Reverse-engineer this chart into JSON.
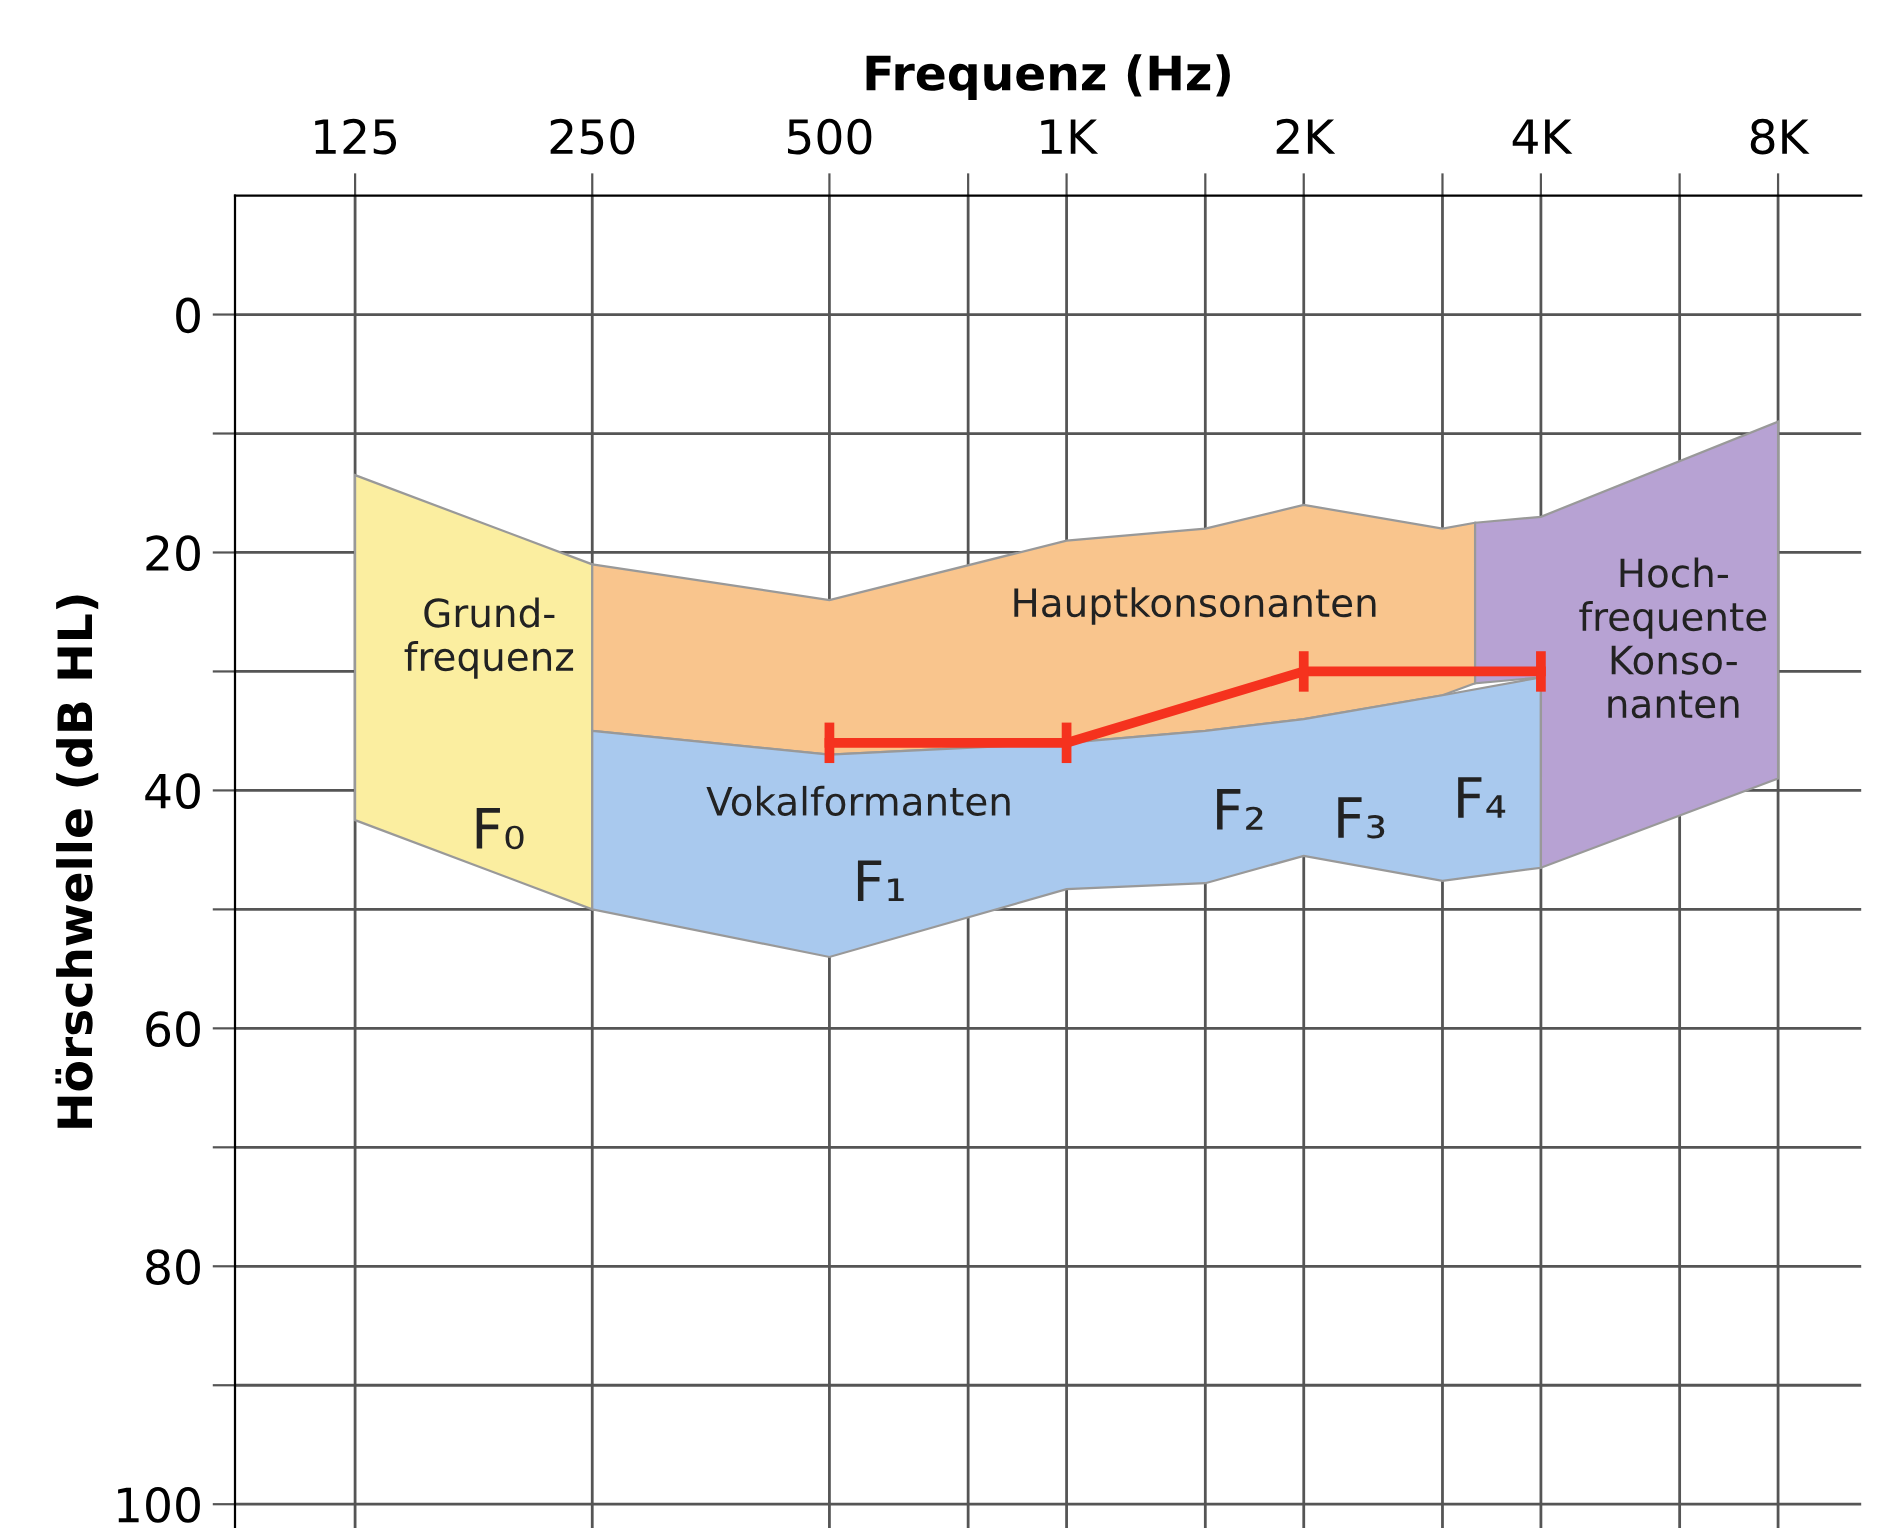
{
  "chart_data": {
    "type": "area",
    "xlabel": "Frequenz (Hz)",
    "ylabel": "Hörschwelle (dB HL)",
    "log": "x",
    "xlim": [
      88,
      10200
    ],
    "ylim": [
      102,
      -10
    ],
    "xticks": [
      125,
      250,
      500,
      {
        "value": 750,
        "label": null
      },
      {
        "value": 1000,
        "label": "1K"
      },
      {
        "value": 1500,
        "label": null
      },
      {
        "value": 2000,
        "label": "2K"
      },
      {
        "value": 3000,
        "label": null
      },
      {
        "value": 4000,
        "label": "4K"
      },
      {
        "value": 6000,
        "label": null
      },
      {
        "value": 8000,
        "label": "8K"
      }
    ],
    "yticks": [
      0,
      {
        "value": 10,
        "label": null
      },
      20,
      {
        "value": 30,
        "label": null
      },
      40,
      {
        "value": 50,
        "label": null
      },
      60,
      {
        "value": 70,
        "label": null
      },
      80,
      {
        "value": 90,
        "label": null
      },
      100
    ],
    "grid": true,
    "series": [
      {
        "color": "#fbeea0",
        "x": [
          125,
          250,
          250,
          125
        ],
        "values": [
          13.5,
          21,
          50,
          42.5
        ]
      },
      {
        "color": "#f9c58d",
        "x": [
          250,
          500,
          1000,
          1500,
          2000,
          3000,
          3300,
          3300,
          3000,
          2000,
          1500,
          1000,
          500,
          250
        ],
        "values": [
          21,
          24,
          19,
          18,
          16,
          18,
          17.5,
          31,
          32,
          34,
          35,
          36,
          37,
          35
        ]
      },
      {
        "color": "#a9c9ee",
        "x": [
          250,
          500,
          1000,
          1500,
          2000,
          3000,
          4000,
          4000,
          3000,
          2000,
          1500,
          1000,
          500,
          250
        ],
        "values": [
          35,
          37,
          36,
          35,
          34,
          32,
          30.5,
          46.5,
          47.6,
          45.5,
          47.8,
          48.3,
          54,
          50
        ]
      },
      {
        "color": "#b7a2d3",
        "x": [
          3300,
          4000,
          8000,
          8000,
          4000,
          4000,
          3300
        ],
        "values": [
          17.5,
          17,
          9,
          39,
          46.5,
          30.5,
          31
        ]
      },
      {
        "type": "line",
        "color": "#f5321e",
        "x": [
          500,
          1000,
          2000,
          4000
        ],
        "values": [
          36,
          36,
          30,
          30
        ],
        "errors": [
          1.7,
          1.7,
          1.7,
          1.7
        ]
      }
    ],
    "annotations": [
      "Grund-\nfrequenz",
      "Hauptkonsonanten",
      "Vokalformanten",
      "Hoch-\nfrequente\nKonso-\nnanten",
      "F₀",
      "F₁",
      "F₂",
      "F₃",
      "F₄"
    ]
  }
}
